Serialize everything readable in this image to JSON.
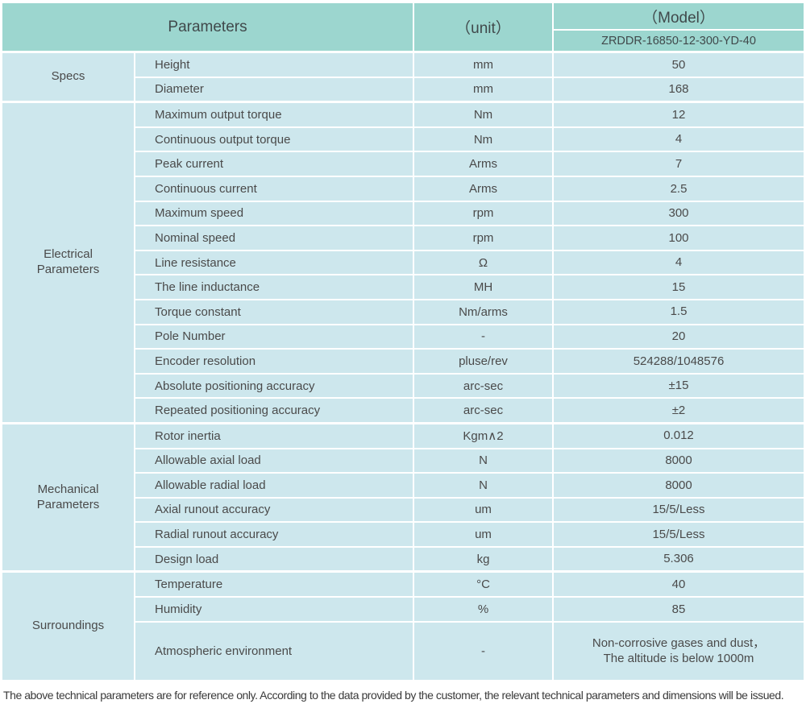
{
  "colors": {
    "header_teal": "#9cd6cf",
    "cell_blue": "#cde7ed",
    "grid_white": "#ffffff",
    "text": "#4a4a4a"
  },
  "table": {
    "header": {
      "parameters_label": "Parameters",
      "unit_label": "（unit）",
      "model_label": "（Model）",
      "model_value": "ZRDDR-16850-12-300-YD-40"
    },
    "sections": [
      {
        "group": "Specs",
        "rows": [
          [
            "Height",
            "mm",
            "50"
          ],
          [
            "Diameter",
            "mm",
            "168"
          ]
        ]
      },
      {
        "group": "Electrical\nParameters",
        "rows": [
          [
            "Maximum output torque",
            "Nm",
            "12"
          ],
          [
            "Continuous output torque",
            "Nm",
            "4"
          ],
          [
            "Peak current",
            "Arms",
            "7"
          ],
          [
            "Continuous current",
            "Arms",
            "2.5"
          ],
          [
            "Maximum speed",
            "rpm",
            "300"
          ],
          [
            "Nominal speed",
            "rpm",
            "100"
          ],
          [
            "Line resistance",
            "Ω",
            "4"
          ],
          [
            "The line inductance",
            "MH",
            "15"
          ],
          [
            "Torque constant",
            "Nm/arms",
            "1.5"
          ],
          [
            "Pole Number",
            "-",
            "20"
          ],
          [
            "Encoder resolution",
            "pluse/rev",
            "524288/1048576"
          ],
          [
            "Absolute positioning accuracy",
            "arc-sec",
            "±15"
          ],
          [
            "Repeated positioning accuracy",
            "arc-sec",
            "±2"
          ]
        ]
      },
      {
        "group": "Mechanical\nParameters",
        "rows": [
          [
            "Rotor inertia",
            "Kgm∧2",
            "0.012"
          ],
          [
            "Allowable axial load",
            "N",
            "8000"
          ],
          [
            "Allowable radial load",
            "N",
            "8000"
          ],
          [
            "Axial runout accuracy",
            "um",
            "15/5/Less"
          ],
          [
            "Radial runout accuracy",
            "um",
            "15/5/Less"
          ],
          [
            "Design load",
            "kg",
            "5.306"
          ]
        ]
      },
      {
        "group": "Surroundings",
        "rows": [
          [
            "Temperature",
            "°C",
            "40"
          ],
          [
            "Humidity",
            "%",
            "85"
          ],
          [
            "Atmospheric environment",
            "-",
            "Non-corrosive gases and dust，\nThe altitude is below 1000m"
          ]
        ]
      }
    ],
    "footer": "The above technical parameters are for reference only. According to the data provided by the customer, the relevant technical parameters and dimensions will be issued."
  }
}
